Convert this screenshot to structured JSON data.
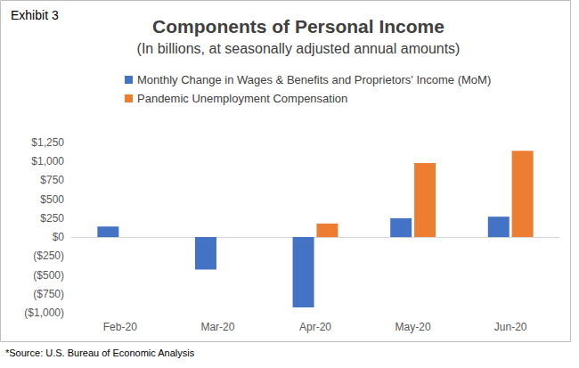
{
  "chart_data": {
    "type": "bar",
    "title": "Components of Personal Income",
    "subtitle": "(In billions, at seasonally adjusted annual amounts)",
    "annotations": [
      "Exhibit 3",
      "*Source: U.S. Bureau of Economic Analysis"
    ],
    "categories": [
      "Feb-20",
      "Mar-20",
      "Apr-20",
      "May-20",
      "Jun-20"
    ],
    "series": [
      {
        "name": "Monthly Change in Wages & Benefits and Proprietors' Income (MoM)",
        "color": "#4472c4",
        "values": [
          140,
          -430,
          -930,
          250,
          270
        ]
      },
      {
        "name": "Pandemic Unemployment Compensation",
        "color": "#ed7d31",
        "values": [
          null,
          null,
          180,
          980,
          1140
        ]
      }
    ],
    "ylim": [
      -1000,
      1250
    ],
    "yticks": [
      {
        "value": -1000,
        "label": "($1,000)"
      },
      {
        "value": -750,
        "label": "($750)"
      },
      {
        "value": -500,
        "label": "($500)"
      },
      {
        "value": -250,
        "label": "($250)"
      },
      {
        "value": 0,
        "label": "$0"
      },
      {
        "value": 250,
        "label": "$250"
      },
      {
        "value": 500,
        "label": "$500"
      },
      {
        "value": 750,
        "label": "$750"
      },
      {
        "value": 1000,
        "label": "$1,000"
      },
      {
        "value": 1250,
        "label": "$1,250"
      }
    ],
    "grid": false,
    "legend": "top"
  }
}
